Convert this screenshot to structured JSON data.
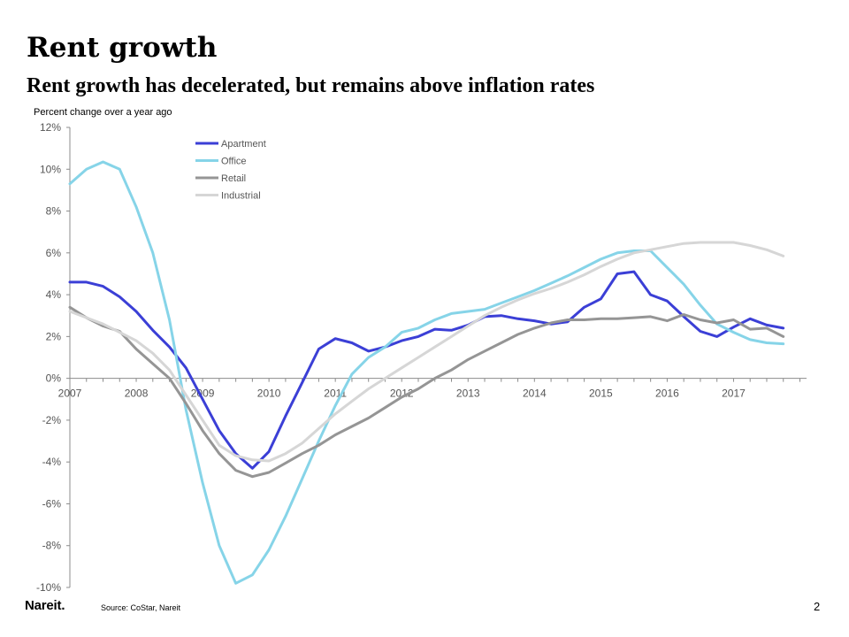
{
  "slide": {
    "title": "Rent growth",
    "subtitle": "Rent growth has decelerated, but remains above inflation rates",
    "source": "Source: CoStar, Nareit",
    "logo": "Nareit.",
    "page_number": "2"
  },
  "chart_data": {
    "type": "line",
    "title": "",
    "ylabel": "Percent change over a year ago",
    "xlabel": "",
    "xlim": [
      2007,
      2018.1
    ],
    "ylim": [
      -10,
      12
    ],
    "y_ticks": [
      12,
      10,
      8,
      6,
      4,
      2,
      0,
      -2,
      -4,
      -6,
      -8,
      -10
    ],
    "y_tick_labels": [
      "12%",
      "10%",
      "8%",
      "6%",
      "4%",
      "2%",
      "0%",
      "-2%",
      "-4%",
      "-6%",
      "-8%",
      "-10%"
    ],
    "x_ticks": [
      2007,
      2008,
      2009,
      2010,
      2011,
      2012,
      2013,
      2014,
      2015,
      2016,
      2017
    ],
    "x_tick_labels": [
      "2007",
      "2008",
      "2009",
      "2010",
      "2011",
      "2012",
      "2013",
      "2014",
      "2015",
      "2016",
      "2017"
    ],
    "grid": false,
    "legend": "top-left",
    "x": [
      2007.0,
      2007.25,
      2007.5,
      2007.75,
      2008.0,
      2008.25,
      2008.5,
      2008.75,
      2009.0,
      2009.25,
      2009.5,
      2009.75,
      2010.0,
      2010.25,
      2010.5,
      2010.75,
      2011.0,
      2011.25,
      2011.5,
      2011.75,
      2012.0,
      2012.25,
      2012.5,
      2012.75,
      2013.0,
      2013.25,
      2013.5,
      2013.75,
      2014.0,
      2014.25,
      2014.5,
      2014.75,
      2015.0,
      2015.25,
      2015.5,
      2015.75,
      2016.0,
      2016.25,
      2016.5,
      2016.75,
      2017.0,
      2017.25,
      2017.5,
      2017.75
    ],
    "series": [
      {
        "name": "Apartment",
        "color": "#3b3fd6",
        "values": [
          4.6,
          4.6,
          4.4,
          3.9,
          3.2,
          2.3,
          1.5,
          0.5,
          -1.0,
          -2.5,
          -3.6,
          -4.3,
          -3.5,
          -1.8,
          -0.2,
          1.4,
          1.9,
          1.7,
          1.3,
          1.5,
          1.8,
          2.0,
          2.35,
          2.3,
          2.55,
          2.95,
          3.0,
          2.85,
          2.75,
          2.6,
          2.7,
          3.4,
          3.8,
          5.0,
          5.1,
          4.0,
          3.7,
          2.95,
          2.25,
          2.0,
          2.45,
          2.85,
          2.55,
          2.4
        ]
      },
      {
        "name": "Office",
        "color": "#86d4e8",
        "values": [
          9.3,
          10.0,
          10.35,
          10.0,
          8.2,
          6.0,
          2.8,
          -1.5,
          -5.0,
          -8.0,
          -9.8,
          -9.4,
          -8.2,
          -6.6,
          -4.8,
          -3.0,
          -1.3,
          0.2,
          1.0,
          1.5,
          2.2,
          2.4,
          2.8,
          3.1,
          3.2,
          3.3,
          3.6,
          3.9,
          4.2,
          4.55,
          4.9,
          5.3,
          5.7,
          6.0,
          6.1,
          6.1,
          5.3,
          4.5,
          3.5,
          2.6,
          2.2,
          1.85,
          1.7,
          1.65
        ]
      },
      {
        "name": "Retail",
        "color": "#959595",
        "values": [
          3.4,
          2.9,
          2.5,
          2.25,
          1.4,
          0.7,
          0.0,
          -1.2,
          -2.5,
          -3.6,
          -4.4,
          -4.7,
          -4.5,
          -4.05,
          -3.6,
          -3.2,
          -2.7,
          -2.3,
          -1.9,
          -1.4,
          -0.9,
          -0.5,
          0.0,
          0.4,
          0.9,
          1.3,
          1.7,
          2.1,
          2.4,
          2.65,
          2.8,
          2.8,
          2.85,
          2.85,
          2.9,
          2.95,
          2.75,
          3.05,
          2.8,
          2.65,
          2.8,
          2.35,
          2.4,
          2.0
        ]
      },
      {
        "name": "Industrial",
        "color": "#d6d6d6",
        "values": [
          3.2,
          2.9,
          2.6,
          2.2,
          1.8,
          1.2,
          0.4,
          -0.8,
          -2.0,
          -3.2,
          -3.7,
          -3.9,
          -3.95,
          -3.6,
          -3.1,
          -2.4,
          -1.7,
          -1.1,
          -0.5,
          0.0,
          0.5,
          1.0,
          1.5,
          2.0,
          2.5,
          3.0,
          3.4,
          3.75,
          4.05,
          4.3,
          4.6,
          4.95,
          5.35,
          5.7,
          6.0,
          6.15,
          6.3,
          6.45,
          6.5,
          6.5,
          6.5,
          6.35,
          6.15,
          5.85
        ]
      }
    ]
  }
}
